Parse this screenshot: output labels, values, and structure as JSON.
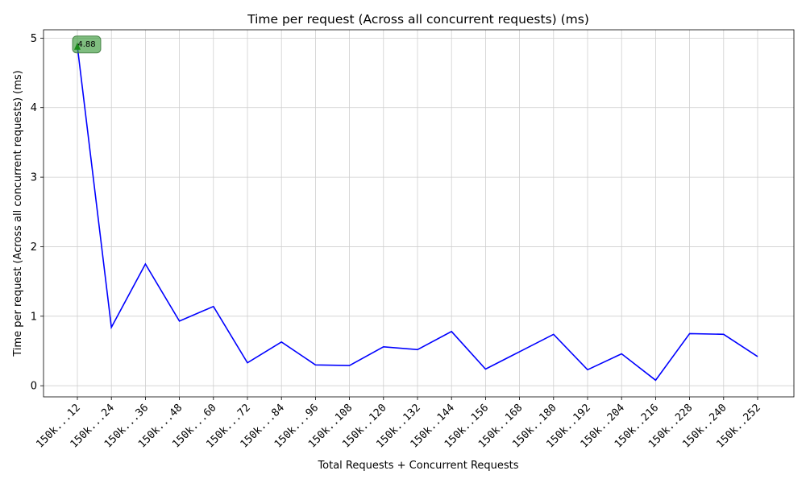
{
  "chart_data": {
    "type": "line",
    "title": "Time per request (Across all concurrent requests) (ms)",
    "xlabel": "Total Requests + Concurrent Requests",
    "ylabel": "Time per request (Across all concurrent requests) (ms)",
    "categories": [
      "150k...12",
      "150k...24",
      "150k...36",
      "150k...48",
      "150k...60",
      "150k...72",
      "150k...84",
      "150k...96",
      "150k..108",
      "150k..120",
      "150k..132",
      "150k..144",
      "150k..156",
      "150k..168",
      "150k..180",
      "150k..192",
      "150k..204",
      "150k..216",
      "150k..228",
      "150k..240",
      "150k..252"
    ],
    "values": [
      4.88,
      0.84,
      1.75,
      0.93,
      1.14,
      0.33,
      0.63,
      0.3,
      0.29,
      0.56,
      0.52,
      0.78,
      0.24,
      0.49,
      0.74,
      0.23,
      0.46,
      0.08,
      0.75,
      0.74,
      0.42
    ],
    "ylim": [
      -0.16,
      5.12
    ],
    "yticks": [
      0,
      1,
      2,
      3,
      4,
      5
    ],
    "grid": true,
    "line_color": "#0000ff",
    "annotation": {
      "text": "4.88",
      "category": "150k...12",
      "value": 4.88,
      "box_color": "#3a9a3a",
      "arrow_color": "#1a8a1a"
    }
  }
}
